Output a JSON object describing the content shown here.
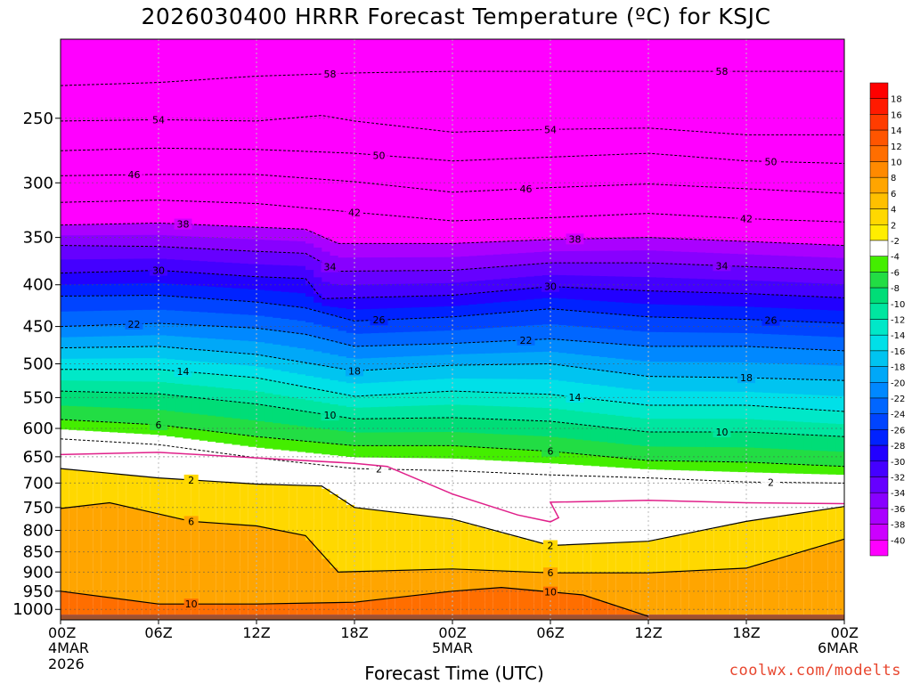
{
  "chart_data": {
    "type": "heatmap",
    "title": "2026030400 HRRR Forecast Temperature (ºC) for KSJC",
    "xlabel": "Forecast Time (UTC)",
    "ylabel": "",
    "credit": "coolwx.com/modelts",
    "x_ticks": [
      {
        "hour": 0,
        "label": "00Z",
        "sub1": "4MAR",
        "sub2": "2026"
      },
      {
        "hour": 6,
        "label": "06Z",
        "sub1": "",
        "sub2": ""
      },
      {
        "hour": 12,
        "label": "12Z",
        "sub1": "",
        "sub2": ""
      },
      {
        "hour": 18,
        "label": "18Z",
        "sub1": "",
        "sub2": ""
      },
      {
        "hour": 24,
        "label": "00Z",
        "sub1": "5MAR",
        "sub2": ""
      },
      {
        "hour": 30,
        "label": "06Z",
        "sub1": "",
        "sub2": ""
      },
      {
        "hour": 36,
        "label": "12Z",
        "sub1": "",
        "sub2": ""
      },
      {
        "hour": 42,
        "label": "18Z",
        "sub1": "",
        "sub2": ""
      },
      {
        "hour": 48,
        "label": "00Z",
        "sub1": "6MAR",
        "sub2": ""
      }
    ],
    "x_range_hours": [
      0,
      48
    ],
    "y_ticks": [
      250,
      300,
      350,
      400,
      450,
      500,
      550,
      600,
      650,
      700,
      750,
      800,
      850,
      900,
      950,
      1000
    ],
    "y_range_hpa": [
      200,
      1030
    ],
    "y_scale": "log",
    "grid": true,
    "colorbar": {
      "levels": [
        18,
        16,
        14,
        12,
        10,
        8,
        6,
        4,
        2,
        -2,
        -4,
        -6,
        -8,
        -10,
        -12,
        -14,
        -16,
        -18,
        -20,
        -22,
        -24,
        -26,
        -28,
        -30,
        -32,
        -34,
        -36,
        -38,
        -40
      ],
      "labels": [
        "18",
        "16",
        "14",
        "12",
        "10",
        "8",
        "6",
        "4",
        "2",
        "-2",
        "-4",
        "-6",
        "-8",
        "-10",
        "-12",
        "-14",
        "-16",
        "-18",
        "-20",
        "-22",
        "-24",
        "-26",
        "-28",
        "-30",
        "-32",
        "-34",
        "-36",
        "-38",
        "-40"
      ],
      "colors": [
        "#ff1a00",
        "#ff3c00",
        "#ff5500",
        "#ff6e00",
        "#ff8a00",
        "#ffa500",
        "#ffc000",
        "#ffd800",
        "#ffee00",
        "#ffffff",
        "#44ee00",
        "#22dd44",
        "#00dd77",
        "#00e6a0",
        "#00e8c8",
        "#00e0e8",
        "#00c4f0",
        "#00a8f8",
        "#0088ff",
        "#0066ff",
        "#0044ff",
        "#0022ff",
        "#2200ff",
        "#4400ff",
        "#6600ff",
        "#8800ff",
        "#aa00ff",
        "#cc00ff",
        "#ff00ff"
      ]
    },
    "isotherms": [
      {
        "temp": -58,
        "label": "58",
        "points": [
          [
            0,
            228
          ],
          [
            6,
            226
          ],
          [
            12,
            222
          ],
          [
            18,
            220
          ],
          [
            24,
            219
          ],
          [
            30,
            219
          ],
          [
            36,
            219
          ],
          [
            42,
            219
          ],
          [
            48,
            219
          ]
        ]
      },
      {
        "temp": -54,
        "label": "54",
        "points": [
          [
            0,
            252
          ],
          [
            6,
            251
          ],
          [
            12,
            252
          ],
          [
            16,
            248
          ],
          [
            18,
            252
          ],
          [
            24,
            260
          ],
          [
            30,
            258
          ],
          [
            36,
            257
          ],
          [
            42,
            262
          ],
          [
            48,
            262
          ]
        ]
      },
      {
        "temp": -50,
        "label": "50",
        "points": [
          [
            0,
            274
          ],
          [
            6,
            272
          ],
          [
            12,
            273
          ],
          [
            18,
            276
          ],
          [
            24,
            282
          ],
          [
            30,
            279
          ],
          [
            36,
            276
          ],
          [
            42,
            282
          ],
          [
            48,
            284
          ]
        ]
      },
      {
        "temp": -46,
        "label": "46",
        "points": [
          [
            0,
            294
          ],
          [
            6,
            293
          ],
          [
            12,
            293
          ],
          [
            18,
            299
          ],
          [
            24,
            308
          ],
          [
            30,
            304
          ],
          [
            36,
            301
          ],
          [
            42,
            305
          ],
          [
            48,
            309
          ]
        ]
      },
      {
        "temp": -42,
        "label": "42",
        "points": [
          [
            0,
            317
          ],
          [
            6,
            315
          ],
          [
            12,
            318
          ],
          [
            18,
            326
          ],
          [
            24,
            334
          ],
          [
            30,
            331
          ],
          [
            36,
            327
          ],
          [
            42,
            332
          ],
          [
            48,
            335
          ]
        ]
      },
      {
        "temp": -38,
        "label": "38",
        "points": [
          [
            0,
            338
          ],
          [
            6,
            336
          ],
          [
            12,
            340
          ],
          [
            15,
            342
          ],
          [
            17,
            356
          ],
          [
            24,
            356
          ],
          [
            30,
            352
          ],
          [
            36,
            350
          ],
          [
            42,
            354
          ],
          [
            48,
            358
          ]
        ]
      },
      {
        "temp": -34,
        "label": "34",
        "points": [
          [
            0,
            358
          ],
          [
            6,
            359
          ],
          [
            12,
            364
          ],
          [
            15,
            366
          ],
          [
            17,
            385
          ],
          [
            24,
            384
          ],
          [
            30,
            376
          ],
          [
            36,
            376
          ],
          [
            42,
            380
          ],
          [
            48,
            384
          ]
        ]
      },
      {
        "temp": -30,
        "label": "30",
        "points": [
          [
            0,
            387
          ],
          [
            6,
            384
          ],
          [
            12,
            391
          ],
          [
            15,
            393
          ],
          [
            16,
            416
          ],
          [
            24,
            412
          ],
          [
            30,
            402
          ],
          [
            36,
            407
          ],
          [
            42,
            410
          ],
          [
            48,
            415
          ]
        ]
      },
      {
        "temp": -26,
        "label": "26",
        "points": [
          [
            0,
            413
          ],
          [
            6,
            412
          ],
          [
            12,
            420
          ],
          [
            15,
            427
          ],
          [
            18,
            443
          ],
          [
            24,
            438
          ],
          [
            30,
            428
          ],
          [
            36,
            438
          ],
          [
            42,
            441
          ],
          [
            48,
            446
          ]
        ]
      },
      {
        "temp": -22,
        "label": "22",
        "points": [
          [
            0,
            450
          ],
          [
            6,
            446
          ],
          [
            12,
            452
          ],
          [
            15,
            460
          ],
          [
            18,
            476
          ],
          [
            24,
            472
          ],
          [
            30,
            466
          ],
          [
            36,
            476
          ],
          [
            42,
            476
          ],
          [
            48,
            482
          ]
        ]
      },
      {
        "temp": -18,
        "label": "18",
        "points": [
          [
            0,
            478
          ],
          [
            6,
            476
          ],
          [
            12,
            487
          ],
          [
            18,
            510
          ],
          [
            24,
            502
          ],
          [
            30,
            500
          ],
          [
            36,
            518
          ],
          [
            42,
            520
          ],
          [
            48,
            524
          ]
        ]
      },
      {
        "temp": -14,
        "label": "14",
        "points": [
          [
            0,
            508
          ],
          [
            6,
            508
          ],
          [
            12,
            520
          ],
          [
            18,
            548
          ],
          [
            24,
            540
          ],
          [
            30,
            545
          ],
          [
            36,
            562
          ],
          [
            42,
            562
          ],
          [
            48,
            572
          ]
        ]
      },
      {
        "temp": -10,
        "label": "10",
        "points": [
          [
            0,
            540
          ],
          [
            6,
            544
          ],
          [
            12,
            560
          ],
          [
            18,
            584
          ],
          [
            24,
            582
          ],
          [
            30,
            588
          ],
          [
            36,
            606
          ],
          [
            42,
            606
          ],
          [
            48,
            614
          ]
        ]
      },
      {
        "temp": -6,
        "label": "6",
        "points": [
          [
            0,
            585
          ],
          [
            6,
            594
          ],
          [
            12,
            614
          ],
          [
            18,
            630
          ],
          [
            24,
            630
          ],
          [
            30,
            640
          ],
          [
            36,
            657
          ],
          [
            42,
            660
          ],
          [
            48,
            668
          ]
        ]
      },
      {
        "temp": -2,
        "label": "2",
        "points": [
          [
            0,
            618
          ],
          [
            6,
            628
          ],
          [
            12,
            652
          ],
          [
            18,
            672
          ],
          [
            24,
            676
          ],
          [
            30,
            684
          ],
          [
            36,
            690
          ],
          [
            42,
            698
          ],
          [
            48,
            700
          ]
        ]
      }
    ],
    "freezing_line": [
      [
        0,
        646
      ],
      [
        6,
        642
      ],
      [
        12,
        652
      ],
      [
        18,
        662
      ],
      [
        20,
        668
      ],
      [
        24,
        722
      ],
      [
        28,
        766
      ],
      [
        30,
        781
      ],
      [
        30.5,
        772
      ],
      [
        30,
        739
      ],
      [
        36,
        735
      ],
      [
        42,
        740
      ],
      [
        48,
        742
      ]
    ],
    "warm_isotherms": [
      {
        "temp": 2,
        "label": "2",
        "points": [
          [
            0,
            672
          ],
          [
            6,
            690
          ],
          [
            12,
            702
          ],
          [
            16,
            706
          ],
          [
            18,
            750
          ],
          [
            24,
            775
          ],
          [
            30,
            835
          ],
          [
            36,
            825
          ],
          [
            42,
            780
          ],
          [
            48,
            748
          ]
        ]
      },
      {
        "temp": 6,
        "label": "6",
        "points": [
          [
            0,
            752
          ],
          [
            3,
            740
          ],
          [
            8,
            780
          ],
          [
            12,
            790
          ],
          [
            15,
            812
          ],
          [
            17,
            900
          ],
          [
            24,
            892
          ],
          [
            30,
            902
          ],
          [
            36,
            902
          ],
          [
            42,
            890
          ],
          [
            48,
            820
          ]
        ]
      },
      {
        "temp": 10,
        "label": "10",
        "points": [
          [
            0,
            950
          ],
          [
            6,
            985
          ],
          [
            12,
            985
          ],
          [
            18,
            980
          ],
          [
            24,
            950
          ],
          [
            27,
            940
          ],
          [
            32,
            960
          ],
          [
            36,
            1020
          ]
        ]
      }
    ],
    "ground_level_hpa": 1015
  }
}
